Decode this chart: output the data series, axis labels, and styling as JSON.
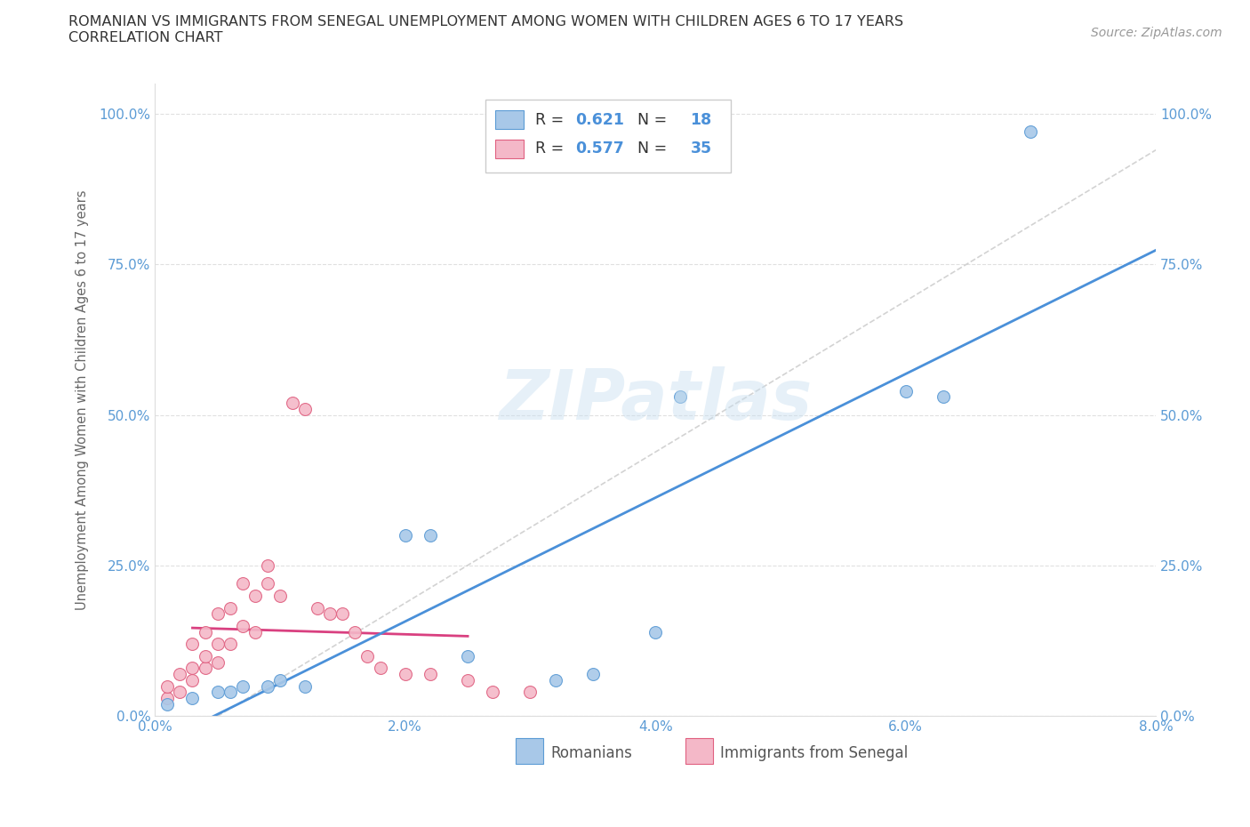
{
  "title_line1": "ROMANIAN VS IMMIGRANTS FROM SENEGAL UNEMPLOYMENT AMONG WOMEN WITH CHILDREN AGES 6 TO 17 YEARS",
  "title_line2": "CORRELATION CHART",
  "source": "Source: ZipAtlas.com",
  "ylabel": "Unemployment Among Women with Children Ages 6 to 17 years",
  "xlim": [
    0.0,
    0.08
  ],
  "ylim": [
    0.0,
    1.05
  ],
  "xtick_labels": [
    "0.0%",
    "2.0%",
    "4.0%",
    "6.0%",
    "8.0%"
  ],
  "xtick_vals": [
    0.0,
    0.02,
    0.04,
    0.06,
    0.08
  ],
  "ytick_labels": [
    "0.0%",
    "25.0%",
    "50.0%",
    "75.0%",
    "100.0%"
  ],
  "ytick_vals": [
    0.0,
    0.25,
    0.5,
    0.75,
    1.0
  ],
  "blue_fill": "#a8c8e8",
  "blue_edge": "#5b9bd5",
  "pink_fill": "#f4b8c8",
  "pink_edge": "#e06080",
  "blue_line": "#4a90d9",
  "pink_line": "#d94080",
  "diag_color": "#c8c8c8",
  "R_blue": 0.621,
  "N_blue": 18,
  "R_pink": 0.577,
  "N_pink": 35,
  "legend_label_blue": "Romanians",
  "legend_label_pink": "Immigrants from Senegal",
  "watermark": "ZIPatlas",
  "background_color": "#ffffff",
  "grid_color": "#e0e0e0",
  "blue_x": [
    0.001,
    0.003,
    0.005,
    0.006,
    0.007,
    0.009,
    0.01,
    0.012,
    0.02,
    0.022,
    0.025,
    0.032,
    0.035,
    0.04,
    0.042,
    0.06,
    0.063,
    0.07
  ],
  "blue_y": [
    0.02,
    0.03,
    0.04,
    0.04,
    0.05,
    0.05,
    0.06,
    0.05,
    0.3,
    0.3,
    0.1,
    0.06,
    0.07,
    0.14,
    0.53,
    0.54,
    0.53,
    0.97
  ],
  "pink_x": [
    0.001,
    0.001,
    0.002,
    0.002,
    0.003,
    0.003,
    0.003,
    0.004,
    0.004,
    0.004,
    0.005,
    0.005,
    0.005,
    0.006,
    0.006,
    0.007,
    0.007,
    0.008,
    0.008,
    0.009,
    0.009,
    0.01,
    0.011,
    0.012,
    0.013,
    0.014,
    0.015,
    0.016,
    0.017,
    0.018,
    0.02,
    0.022,
    0.025,
    0.027,
    0.03
  ],
  "pink_y": [
    0.03,
    0.05,
    0.04,
    0.07,
    0.06,
    0.08,
    0.12,
    0.08,
    0.1,
    0.14,
    0.09,
    0.12,
    0.17,
    0.12,
    0.18,
    0.15,
    0.22,
    0.14,
    0.2,
    0.22,
    0.25,
    0.2,
    0.52,
    0.51,
    0.18,
    0.17,
    0.17,
    0.14,
    0.1,
    0.08,
    0.07,
    0.07,
    0.06,
    0.04,
    0.04
  ],
  "pink_line_x_start": 0.003,
  "pink_line_x_end": 0.025,
  "blue_line_x_start": 0.0,
  "blue_line_x_end": 0.08
}
